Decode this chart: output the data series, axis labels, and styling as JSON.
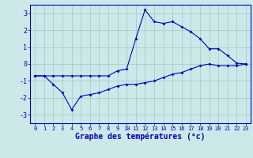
{
  "xlabel": "Graphe des températures (°c)",
  "bg_color": "#cce8e8",
  "grid_color": "#99cccc",
  "line_color": "#0000bb",
  "xlim": [
    -0.5,
    23.5
  ],
  "ylim": [
    -3.5,
    3.5
  ],
  "yticks": [
    -3,
    -2,
    -1,
    0,
    1,
    2,
    3
  ],
  "xticks": [
    0,
    1,
    2,
    3,
    4,
    5,
    6,
    7,
    8,
    9,
    10,
    11,
    12,
    13,
    14,
    15,
    16,
    17,
    18,
    19,
    20,
    21,
    22,
    23
  ],
  "line1_x": [
    0,
    1,
    2,
    3,
    4,
    5,
    6,
    7,
    8,
    9,
    10,
    11,
    12,
    13,
    14,
    15,
    16,
    17,
    18,
    19,
    20,
    21,
    22,
    23
  ],
  "line1_y": [
    -0.7,
    -0.7,
    -0.7,
    -0.7,
    -0.7,
    -0.7,
    -0.7,
    -0.7,
    -0.7,
    -0.4,
    -0.3,
    1.5,
    3.2,
    2.5,
    2.4,
    2.5,
    2.2,
    1.9,
    1.5,
    0.9,
    0.9,
    0.5,
    0.05,
    0.0
  ],
  "line2_x": [
    0,
    1,
    2,
    3,
    4,
    5,
    6,
    7,
    8,
    9,
    10,
    11,
    12,
    13,
    14,
    15,
    16,
    17,
    18,
    19,
    20,
    21,
    22,
    23
  ],
  "line2_y": [
    -0.7,
    -0.7,
    -1.2,
    -1.7,
    -2.7,
    -1.9,
    -1.8,
    -1.7,
    -1.5,
    -1.3,
    -1.2,
    -1.2,
    -1.1,
    -1.0,
    -0.8,
    -0.6,
    -0.5,
    -0.3,
    -0.1,
    0.0,
    -0.1,
    -0.1,
    -0.1,
    0.0
  ],
  "xlabel_fontsize": 7,
  "ytick_fontsize": 6,
  "xtick_fontsize": 5
}
